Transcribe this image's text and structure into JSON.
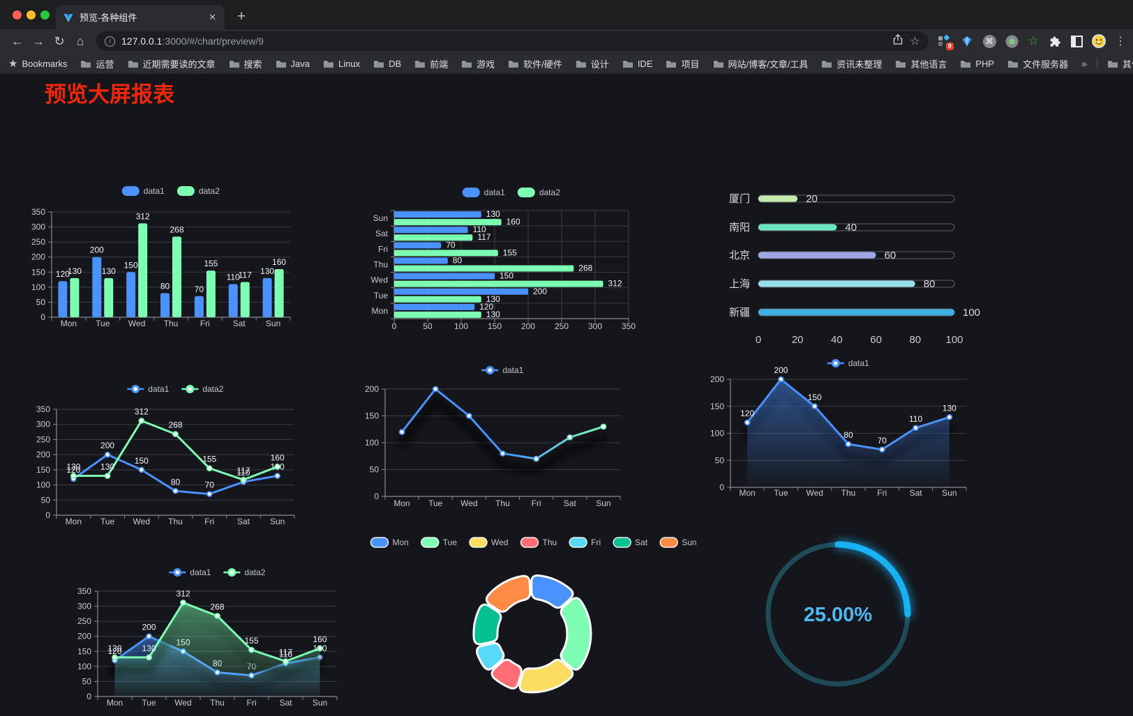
{
  "browser": {
    "tab": {
      "title": "预览-各种组件"
    },
    "icons": {
      "back": "←",
      "forward": "→",
      "reload": "↻",
      "home": "⌂",
      "star": "☆",
      "menu": "⋮",
      "plus": "+",
      "close": "✕",
      "cmd": "⌘",
      "info": "i",
      "chevron": "»",
      "bm_star": "★",
      "ext_star": "☆"
    },
    "url": {
      "domain": "127.0.0.1",
      "rest": ":3000/#/chart/preview/9"
    },
    "extension_badge": "9",
    "bookmarks_label": "Bookmarks",
    "bookmarks": [
      "运营",
      "近期需要读的文章",
      "搜索",
      "Java",
      "Linux",
      "DB",
      "前端",
      "游戏",
      "软件/硬件",
      "设计",
      "IDE",
      "项目",
      "网站/博客/文章/工具",
      "资讯未整理",
      "其他语言",
      "PHP",
      "文件服务器"
    ],
    "other_bookmarks": "其他书签"
  },
  "page": {
    "title": "预览大屏报表"
  },
  "chart_data": [
    {
      "id": "bar-vertical",
      "type": "bar",
      "categories": [
        "Mon",
        "Tue",
        "Wed",
        "Thu",
        "Fri",
        "Sat",
        "Sun"
      ],
      "series": [
        {
          "name": "data1",
          "color": "#4992ff",
          "values": [
            120,
            200,
            150,
            80,
            70,
            110,
            130
          ]
        },
        {
          "name": "data2",
          "color": "#7cffb2",
          "values": [
            130,
            130,
            312,
            268,
            155,
            117,
            160
          ]
        }
      ],
      "ylim": [
        0,
        350
      ],
      "ystep": 50,
      "legend_position": "top",
      "grid": true,
      "point_labels": true
    },
    {
      "id": "bar-horizontal",
      "type": "bar-horizontal",
      "categories": [
        "Mon",
        "Tue",
        "Wed",
        "Thu",
        "Fri",
        "Sat",
        "Sun"
      ],
      "series": [
        {
          "name": "data1",
          "color": "#4992ff",
          "values": [
            120,
            200,
            150,
            80,
            70,
            110,
            130
          ]
        },
        {
          "name": "data2",
          "color": "#7cffb2",
          "values": [
            130,
            130,
            312,
            268,
            155,
            117,
            160
          ]
        }
      ],
      "xlim": [
        0,
        350
      ],
      "xstep": 50,
      "legend_position": "top",
      "point_labels": true
    },
    {
      "id": "city-progress",
      "type": "progress-bars",
      "categories": [
        "厦门",
        "南阳",
        "北京",
        "上海",
        "新疆"
      ],
      "values": [
        20,
        40,
        60,
        80,
        100
      ],
      "colors": [
        "#c4ebad",
        "#6be6c1",
        "#a0a7e6",
        "#96dee8",
        "#3fb1e3"
      ],
      "xticks": [
        0,
        20,
        40,
        60,
        80,
        100
      ],
      "xlim": [
        0,
        100
      ]
    },
    {
      "id": "line-basic",
      "type": "line",
      "categories": [
        "Mon",
        "Tue",
        "Wed",
        "Thu",
        "Fri",
        "Sat",
        "Sun"
      ],
      "series": [
        {
          "name": "data1",
          "color": "#4992ff",
          "values": [
            120,
            200,
            150,
            80,
            70,
            110,
            130
          ]
        },
        {
          "name": "data2",
          "color": "#7cffb2",
          "values": [
            130,
            130,
            312,
            268,
            155,
            117,
            160
          ]
        }
      ],
      "ylim": [
        0,
        350
      ],
      "ystep": 50,
      "point_labels": true,
      "legend_position": "top"
    },
    {
      "id": "line-gradient",
      "type": "line",
      "categories": [
        "Mon",
        "Tue",
        "Wed",
        "Thu",
        "Fri",
        "Sat",
        "Sun"
      ],
      "series": [
        {
          "name": "data1",
          "gradient": [
            "#4992ff",
            "#7cffb2"
          ],
          "color": "#4992ff",
          "values": [
            120,
            200,
            150,
            80,
            70,
            110,
            130
          ],
          "shadow": true
        }
      ],
      "ylim": [
        0,
        200
      ],
      "ystep": 50,
      "point_labels": false,
      "legend_position": "top"
    },
    {
      "id": "area-single",
      "type": "area",
      "categories": [
        "Mon",
        "Tue",
        "Wed",
        "Thu",
        "Fri",
        "Sat",
        "Sun"
      ],
      "series": [
        {
          "name": "data1",
          "color": "#4992ff",
          "values": [
            120,
            200,
            150,
            80,
            70,
            110,
            130
          ],
          "area": true,
          "shadow": true
        }
      ],
      "ylim": [
        0,
        200
      ],
      "ystep": 50,
      "point_labels": true,
      "legend_position": "top"
    },
    {
      "id": "area-double",
      "type": "area",
      "categories": [
        "Mon",
        "Tue",
        "Wed",
        "Thu",
        "Fri",
        "Sat",
        "Sun"
      ],
      "series": [
        {
          "name": "data1",
          "color": "#4992ff",
          "values": [
            120,
            200,
            150,
            80,
            70,
            110,
            130
          ],
          "area": true,
          "shadow": true
        },
        {
          "name": "data2",
          "color": "#7cffb2",
          "values": [
            130,
            130,
            312,
            268,
            155,
            117,
            160
          ],
          "area": true,
          "shadow": true
        }
      ],
      "ylim": [
        0,
        350
      ],
      "ystep": 50,
      "point_labels": true,
      "legend_position": "top"
    },
    {
      "id": "donut",
      "type": "pie",
      "categories": [
        "Mon",
        "Tue",
        "Wed",
        "Thu",
        "Fri",
        "Sat",
        "Sun"
      ],
      "values": [
        120,
        200,
        150,
        80,
        70,
        110,
        130
      ],
      "colors": [
        "#4992ff",
        "#7cffb2",
        "#fddd60",
        "#ff6e76",
        "#58d9f9",
        "#05c091",
        "#ff8a45"
      ],
      "inner_radius_ratio": 0.6,
      "border_color": "#ffffff",
      "legend_position": "top"
    },
    {
      "id": "gauge",
      "type": "gauge",
      "percent": 25,
      "label": "25.00%",
      "color": "#17b2f4",
      "track_color": "#1e4b57",
      "text_color": "#4db9f3"
    }
  ]
}
